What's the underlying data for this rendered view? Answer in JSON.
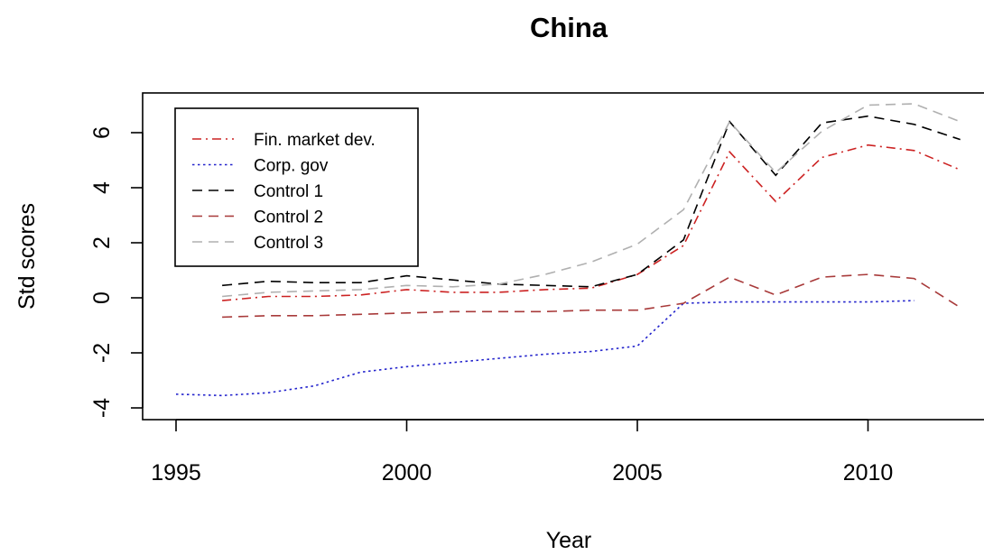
{
  "chart_data": {
    "type": "line",
    "title": "China",
    "xlabel": "Year",
    "ylabel": "Std scores",
    "xlim": [
      1995,
      2012
    ],
    "ylim": [
      -4,
      6
    ],
    "x_ticks": [
      1995,
      2000,
      2005,
      2010
    ],
    "y_ticks": [
      -4,
      -2,
      0,
      2,
      4,
      6
    ],
    "legend_position": "top-left",
    "series": [
      {
        "name": "Fin. market dev.",
        "color": "#cc2222",
        "dash": "dash-dot",
        "x": [
          1996,
          1997,
          1998,
          1999,
          2000,
          2001,
          2002,
          2003,
          2004,
          2005,
          2006,
          2007,
          2008,
          2009,
          2010,
          2011,
          2012
        ],
        "y": [
          -0.1,
          0.05,
          0.05,
          0.1,
          0.3,
          0.2,
          0.2,
          0.3,
          0.35,
          0.85,
          1.9,
          5.3,
          3.5,
          5.1,
          5.55,
          5.35,
          4.65
        ]
      },
      {
        "name": "Corp. gov",
        "color": "#2222cc",
        "dash": "dotted",
        "x": [
          1995,
          1996,
          1997,
          1998,
          1999,
          2000,
          2001,
          2002,
          2003,
          2004,
          2005,
          2006,
          2007,
          2008,
          2009,
          2010,
          2011
        ],
        "y": [
          -3.5,
          -3.55,
          -3.45,
          -3.2,
          -2.7,
          -2.5,
          -2.35,
          -2.2,
          -2.05,
          -1.95,
          -1.75,
          -0.2,
          -0.15,
          -0.15,
          -0.15,
          -0.15,
          -0.1
        ]
      },
      {
        "name": "Control 1",
        "color": "#000000",
        "dash": "dashed",
        "x": [
          1996,
          1997,
          1998,
          1999,
          2000,
          2001,
          2002,
          2003,
          2004,
          2005,
          2006,
          2007,
          2008,
          2009,
          2010,
          2011,
          2012
        ],
        "y": [
          0.45,
          0.6,
          0.55,
          0.55,
          0.8,
          0.65,
          0.5,
          0.45,
          0.4,
          0.85,
          2.1,
          6.4,
          4.45,
          6.35,
          6.6,
          6.3,
          5.75
        ]
      },
      {
        "name": "Control 2",
        "color": "#a83a3a",
        "dash": "dashed",
        "x": [
          1996,
          1997,
          1998,
          1999,
          2000,
          2001,
          2002,
          2003,
          2004,
          2005,
          2006,
          2007,
          2008,
          2009,
          2010,
          2011,
          2012
        ],
        "y": [
          -0.7,
          -0.65,
          -0.65,
          -0.6,
          -0.55,
          -0.5,
          -0.5,
          -0.5,
          -0.45,
          -0.45,
          -0.2,
          0.75,
          0.1,
          0.75,
          0.85,
          0.7,
          -0.35
        ]
      },
      {
        "name": "Control 3",
        "color": "#b0b0b0",
        "dash": "dashed",
        "x": [
          1996,
          1997,
          1998,
          1999,
          2000,
          2001,
          2002,
          2003,
          2004,
          2005,
          2006,
          2007,
          2008,
          2009,
          2010,
          2011,
          2012
        ],
        "y": [
          0.05,
          0.2,
          0.25,
          0.3,
          0.45,
          0.4,
          0.5,
          0.85,
          1.3,
          1.95,
          3.2,
          6.4,
          4.55,
          6.05,
          7.0,
          7.05,
          6.4
        ]
      }
    ]
  }
}
